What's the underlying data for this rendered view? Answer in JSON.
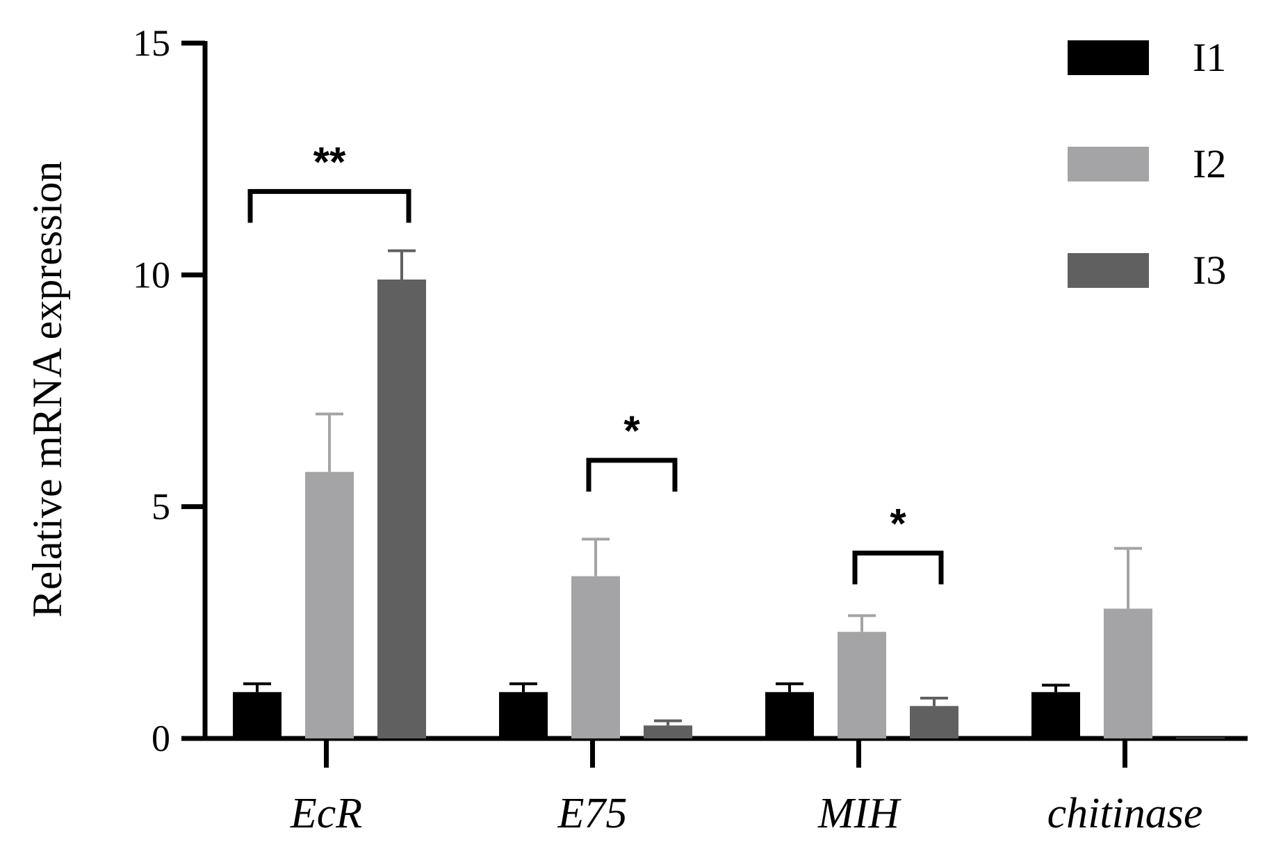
{
  "chart_data": {
    "type": "bar",
    "title": "",
    "xlabel": "",
    "ylabel": "Relative mRNA expression",
    "ylim": [
      0,
      15
    ],
    "yticks": [
      0,
      5,
      10,
      15
    ],
    "categories": [
      "EcR",
      "E75",
      "MIH",
      "chitinase"
    ],
    "series": [
      {
        "name": "I1",
        "color": "#000000",
        "values": [
          1.0,
          1.0,
          1.0,
          1.0
        ],
        "errors": [
          0.18,
          0.18,
          0.18,
          0.15
        ]
      },
      {
        "name": "I2",
        "color": "#a4a4a6",
        "values": [
          5.75,
          3.5,
          2.3,
          2.8
        ],
        "errors": [
          1.25,
          0.8,
          0.35,
          1.3
        ]
      },
      {
        "name": "I3",
        "color": "#606060",
        "values": [
          9.9,
          0.28,
          0.7,
          0.02
        ],
        "errors": [
          0.62,
          0.1,
          0.17,
          0.0
        ]
      }
    ],
    "legend_position": "top-right",
    "grid": false,
    "significance": [
      {
        "category": "EcR",
        "from_series": 0,
        "to_series": 2,
        "label": "**",
        "y": 11.8
      },
      {
        "category": "E75",
        "from_series": 1,
        "to_series": 2,
        "label": "*",
        "y": 6.0
      },
      {
        "category": "MIH",
        "from_series": 1,
        "to_series": 2,
        "label": "*",
        "y": 4.0
      }
    ]
  }
}
